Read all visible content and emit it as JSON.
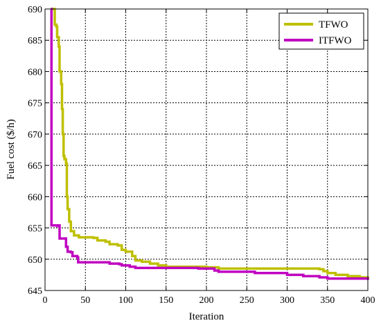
{
  "chart_data": {
    "type": "line",
    "title": "",
    "xlabel": "Iteration",
    "ylabel": "Fuel cost ($/h)",
    "xlim": [
      0,
      400
    ],
    "ylim": [
      645,
      690
    ],
    "xticks": [
      0,
      50,
      100,
      150,
      200,
      250,
      300,
      350,
      400
    ],
    "yticks": [
      645,
      650,
      655,
      660,
      665,
      670,
      675,
      680,
      685,
      690
    ],
    "grid": true,
    "grid_style": "dotted",
    "legend": {
      "position": "top-right",
      "entries": [
        "TFWO",
        "ITFWO"
      ]
    },
    "series": [
      {
        "name": "TFWO",
        "color": "#bfbf00",
        "points": [
          [
            8,
            690
          ],
          [
            10,
            690
          ],
          [
            12,
            687.5
          ],
          [
            14,
            687.2
          ],
          [
            15,
            685.5
          ],
          [
            17,
            684
          ],
          [
            18,
            680
          ],
          [
            20,
            678
          ],
          [
            21,
            674
          ],
          [
            22,
            670
          ],
          [
            23,
            666.5
          ],
          [
            24,
            666
          ],
          [
            26,
            665.3
          ],
          [
            27,
            660
          ],
          [
            28,
            658
          ],
          [
            30,
            656
          ],
          [
            32,
            654.5
          ],
          [
            36,
            653.8
          ],
          [
            42,
            653.5
          ],
          [
            60,
            653.4
          ],
          [
            65,
            653
          ],
          [
            75,
            652.8
          ],
          [
            80,
            652.4
          ],
          [
            90,
            652.2
          ],
          [
            95,
            651.5
          ],
          [
            100,
            651.2
          ],
          [
            108,
            650.5
          ],
          [
            112,
            649.8
          ],
          [
            120,
            649.6
          ],
          [
            130,
            649.3
          ],
          [
            140,
            649
          ],
          [
            150,
            648.8
          ],
          [
            200,
            648.7
          ],
          [
            215,
            648.5
          ],
          [
            340,
            648.4
          ],
          [
            345,
            648.1
          ],
          [
            350,
            647.8
          ],
          [
            360,
            647.5
          ],
          [
            375,
            647.3
          ],
          [
            390,
            647.1
          ],
          [
            400,
            646.9
          ]
        ]
      },
      {
        "name": "ITFWO",
        "color": "#c000c0",
        "points": [
          [
            7,
            690
          ],
          [
            8,
            655.4
          ],
          [
            15,
            655.3
          ],
          [
            17,
            655.4
          ],
          [
            18,
            653.3
          ],
          [
            25,
            653.3
          ],
          [
            26,
            652
          ],
          [
            28,
            651.2
          ],
          [
            32,
            651.1
          ],
          [
            34,
            650.5
          ],
          [
            40,
            650.3
          ],
          [
            41,
            649.5
          ],
          [
            75,
            649.5
          ],
          [
            80,
            649.3
          ],
          [
            92,
            649.2
          ],
          [
            95,
            649
          ],
          [
            105,
            648.8
          ],
          [
            112,
            648.6
          ],
          [
            190,
            648.5
          ],
          [
            210,
            648.2
          ],
          [
            215,
            648
          ],
          [
            260,
            647.8
          ],
          [
            300,
            647.5
          ],
          [
            320,
            647.3
          ],
          [
            340,
            647.1
          ],
          [
            350,
            646.9
          ],
          [
            400,
            646.7
          ]
        ]
      }
    ]
  }
}
